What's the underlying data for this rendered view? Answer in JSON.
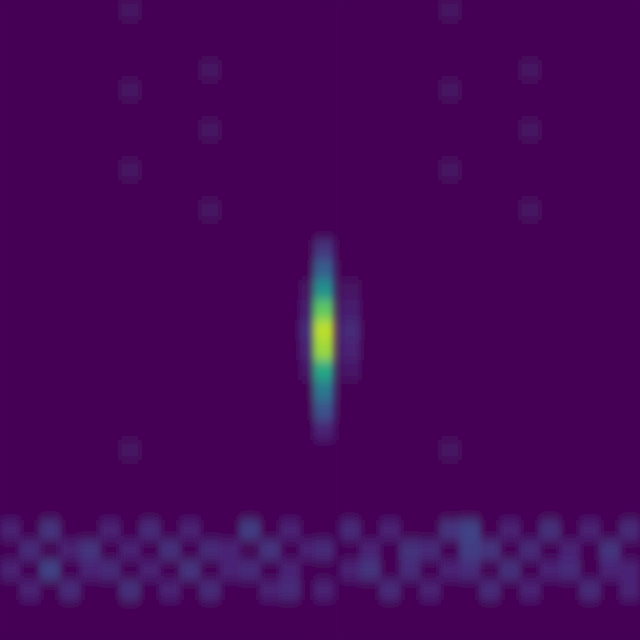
{
  "chart_data": {
    "type": "heatmap",
    "tick_labels": false,
    "color_range": [
      0,
      1
    ],
    "cells": [
      [
        0,
        0,
        0,
        0,
        0,
        0,
        0.05,
        0,
        0,
        0,
        0,
        0,
        0,
        0,
        0,
        0,
        0,
        0,
        0,
        0,
        0,
        0,
        0.05,
        0,
        0,
        0,
        0,
        0,
        0,
        0,
        0,
        0
      ],
      [
        0,
        0,
        0,
        0,
        0,
        0,
        0,
        0,
        0,
        0,
        0,
        0,
        0,
        0,
        0,
        0,
        0,
        0,
        0,
        0,
        0,
        0,
        0,
        0,
        0,
        0,
        0,
        0,
        0,
        0,
        0,
        0
      ],
      [
        0,
        0,
        0,
        0,
        0,
        0,
        0,
        0,
        0,
        0,
        0,
        0,
        0,
        0,
        0,
        0,
        0,
        0,
        0,
        0,
        0,
        0,
        0,
        0,
        0,
        0,
        0,
        0,
        0,
        0,
        0,
        0
      ],
      [
        0,
        0,
        0,
        0,
        0,
        0,
        0,
        0,
        0,
        0,
        0.05,
        0,
        0,
        0,
        0,
        0,
        0,
        0,
        0,
        0,
        0,
        0,
        0,
        0,
        0,
        0,
        0.05,
        0,
        0,
        0,
        0,
        0
      ],
      [
        0,
        0,
        0,
        0,
        0,
        0,
        0.05,
        0,
        0,
        0,
        0,
        0,
        0,
        0,
        0,
        0,
        0,
        0,
        0,
        0,
        0,
        0,
        0.05,
        0,
        0,
        0,
        0,
        0,
        0,
        0,
        0,
        0
      ],
      [
        0,
        0,
        0,
        0,
        0,
        0,
        0,
        0,
        0,
        0,
        0,
        0,
        0,
        0,
        0,
        0,
        0,
        0,
        0,
        0,
        0,
        0,
        0,
        0,
        0,
        0,
        0,
        0,
        0,
        0,
        0,
        0
      ],
      [
        0,
        0,
        0,
        0,
        0,
        0,
        0,
        0,
        0,
        0,
        0.05,
        0,
        0,
        0,
        0,
        0,
        0,
        0,
        0,
        0,
        0,
        0,
        0,
        0,
        0,
        0,
        0.05,
        0,
        0,
        0,
        0,
        0
      ],
      [
        0,
        0,
        0,
        0,
        0,
        0,
        0,
        0,
        0,
        0,
        0,
        0,
        0,
        0,
        0,
        0,
        0,
        0,
        0,
        0,
        0,
        0,
        0,
        0,
        0,
        0,
        0,
        0,
        0,
        0,
        0,
        0
      ],
      [
        0,
        0,
        0,
        0,
        0,
        0,
        0.05,
        0,
        0,
        0,
        0,
        0,
        0,
        0,
        0,
        0,
        0,
        0,
        0,
        0,
        0,
        0,
        0.05,
        0,
        0,
        0,
        0,
        0,
        0,
        0,
        0,
        0
      ],
      [
        0,
        0,
        0,
        0,
        0,
        0,
        0,
        0,
        0,
        0,
        0,
        0,
        0,
        0,
        0,
        0,
        0,
        0,
        0,
        0,
        0,
        0,
        0,
        0,
        0,
        0,
        0,
        0,
        0,
        0,
        0,
        0
      ],
      [
        0,
        0,
        0,
        0,
        0,
        0,
        0,
        0,
        0,
        0,
        0.05,
        0,
        0,
        0,
        0,
        0,
        0,
        0,
        0,
        0,
        0,
        0,
        0,
        0,
        0,
        0,
        0.05,
        0,
        0,
        0,
        0,
        0
      ],
      [
        0,
        0,
        0,
        0,
        0,
        0,
        0,
        0,
        0,
        0,
        0,
        0,
        0,
        0,
        0,
        0,
        0,
        0,
        0,
        0,
        0,
        0,
        0,
        0,
        0,
        0,
        0,
        0,
        0,
        0,
        0,
        0
      ],
      [
        0,
        0,
        0,
        0,
        0,
        0,
        0,
        0,
        0,
        0,
        0,
        0,
        0,
        0,
        0,
        0,
        0.15,
        0,
        0,
        0,
        0,
        0,
        0,
        0,
        0,
        0,
        0,
        0,
        0,
        0,
        0,
        0
      ],
      [
        0,
        0,
        0,
        0,
        0,
        0,
        0,
        0,
        0,
        0,
        0,
        0,
        0,
        0,
        0,
        0,
        0.3,
        0,
        0,
        0,
        0,
        0,
        0,
        0,
        0,
        0,
        0,
        0,
        0,
        0,
        0,
        0
      ],
      [
        0,
        0,
        0,
        0,
        0,
        0,
        0,
        0,
        0,
        0,
        0,
        0,
        0,
        0,
        0,
        0.05,
        0.5,
        0.05,
        0,
        0,
        0,
        0,
        0,
        0,
        0,
        0,
        0,
        0,
        0,
        0,
        0,
        0
      ],
      [
        0,
        0,
        0,
        0,
        0,
        0,
        0,
        0,
        0,
        0,
        0,
        0,
        0,
        0,
        0,
        0.08,
        0.75,
        0.08,
        0,
        0,
        0,
        0,
        0,
        0,
        0,
        0,
        0,
        0,
        0,
        0,
        0,
        0
      ],
      [
        0,
        0,
        0,
        0,
        0,
        0,
        0,
        0,
        0,
        0,
        0,
        0,
        0,
        0,
        0,
        0.12,
        0.9,
        0.12,
        0,
        0,
        0,
        0,
        0,
        0,
        0,
        0,
        0,
        0,
        0,
        0,
        0,
        0
      ],
      [
        0,
        0,
        0,
        0,
        0,
        0,
        0,
        0,
        0,
        0,
        0,
        0,
        0,
        0,
        0,
        0.1,
        0.85,
        0.1,
        0,
        0,
        0,
        0,
        0,
        0,
        0,
        0,
        0,
        0,
        0,
        0,
        0,
        0
      ],
      [
        0,
        0,
        0,
        0,
        0,
        0,
        0,
        0,
        0,
        0,
        0,
        0,
        0,
        0,
        0,
        0.06,
        0.6,
        0.06,
        0,
        0,
        0,
        0,
        0,
        0,
        0,
        0,
        0,
        0,
        0,
        0,
        0,
        0
      ],
      [
        0,
        0,
        0,
        0,
        0,
        0,
        0,
        0,
        0,
        0,
        0,
        0,
        0,
        0,
        0,
        0,
        0.4,
        0,
        0,
        0,
        0,
        0,
        0,
        0,
        0,
        0,
        0,
        0,
        0,
        0,
        0,
        0
      ],
      [
        0,
        0,
        0,
        0,
        0,
        0,
        0,
        0,
        0,
        0,
        0,
        0,
        0,
        0,
        0,
        0,
        0.25,
        0,
        0,
        0,
        0,
        0,
        0,
        0,
        0,
        0,
        0,
        0,
        0,
        0,
        0,
        0
      ],
      [
        0,
        0,
        0,
        0,
        0,
        0,
        0,
        0,
        0,
        0,
        0,
        0,
        0,
        0,
        0,
        0,
        0.1,
        0,
        0,
        0,
        0,
        0,
        0,
        0,
        0,
        0,
        0,
        0,
        0,
        0,
        0,
        0
      ],
      [
        0,
        0,
        0,
        0,
        0,
        0,
        0.05,
        0,
        0,
        0,
        0,
        0,
        0,
        0,
        0,
        0,
        0,
        0,
        0,
        0,
        0,
        0,
        0.05,
        0,
        0,
        0,
        0,
        0,
        0,
        0,
        0,
        0
      ],
      [
        0,
        0,
        0,
        0,
        0,
        0,
        0,
        0,
        0,
        0,
        0,
        0,
        0,
        0,
        0,
        0,
        0,
        0,
        0,
        0,
        0,
        0,
        0,
        0,
        0,
        0,
        0,
        0,
        0,
        0,
        0,
        0
      ],
      [
        0,
        0,
        0,
        0,
        0,
        0,
        0,
        0,
        0,
        0,
        0,
        0,
        0,
        0,
        0,
        0,
        0,
        0,
        0,
        0,
        0,
        0,
        0,
        0,
        0,
        0,
        0,
        0,
        0,
        0,
        0,
        0
      ],
      [
        0,
        0,
        0,
        0,
        0,
        0,
        0,
        0,
        0,
        0,
        0,
        0,
        0,
        0,
        0,
        0,
        0,
        0,
        0,
        0,
        0,
        0,
        0,
        0,
        0,
        0,
        0,
        0,
        0,
        0,
        0,
        0
      ],
      [
        0.1,
        0,
        0.15,
        0,
        0,
        0.1,
        0,
        0.12,
        0,
        0.1,
        0,
        0,
        0.18,
        0,
        0.1,
        0,
        0,
        0.12,
        0,
        0.1,
        0,
        0,
        0.15,
        0.2,
        0,
        0.1,
        0,
        0.14,
        0,
        0.1,
        0,
        0.12
      ],
      [
        0,
        0.12,
        0,
        0.1,
        0.15,
        0,
        0.1,
        0,
        0.14,
        0,
        0.12,
        0.1,
        0,
        0.15,
        0,
        0.1,
        0.12,
        0,
        0.1,
        0,
        0.14,
        0.12,
        0,
        0.18,
        0.15,
        0,
        0.12,
        0,
        0.1,
        0,
        0.15,
        0
      ],
      [
        0.1,
        0,
        0.2,
        0,
        0.1,
        0.12,
        0,
        0.1,
        0,
        0.15,
        0,
        0.1,
        0.12,
        0,
        0.1,
        0,
        0,
        0.1,
        0.15,
        0,
        0.12,
        0,
        0.1,
        0.12,
        0,
        0.14,
        0,
        0.1,
        0.12,
        0,
        0.1,
        0.1
      ],
      [
        0,
        0.1,
        0,
        0.12,
        0,
        0,
        0.14,
        0,
        0.1,
        0,
        0.12,
        0,
        0,
        0.1,
        0.12,
        0,
        0.1,
        0,
        0,
        0.12,
        0,
        0.1,
        0,
        0,
        0.12,
        0,
        0.1,
        0,
        0,
        0.12,
        0,
        0.1
      ],
      [
        0,
        0,
        0,
        0,
        0,
        0,
        0,
        0,
        0,
        0,
        0,
        0,
        0,
        0,
        0,
        0,
        0,
        0,
        0,
        0,
        0,
        0,
        0,
        0,
        0,
        0,
        0,
        0,
        0,
        0,
        0,
        0
      ],
      [
        0,
        0,
        0,
        0,
        0,
        0,
        0,
        0,
        0,
        0,
        0,
        0,
        0,
        0,
        0,
        0,
        0,
        0,
        0,
        0,
        0,
        0,
        0,
        0,
        0,
        0,
        0,
        0,
        0,
        0,
        0,
        0
      ]
    ]
  }
}
